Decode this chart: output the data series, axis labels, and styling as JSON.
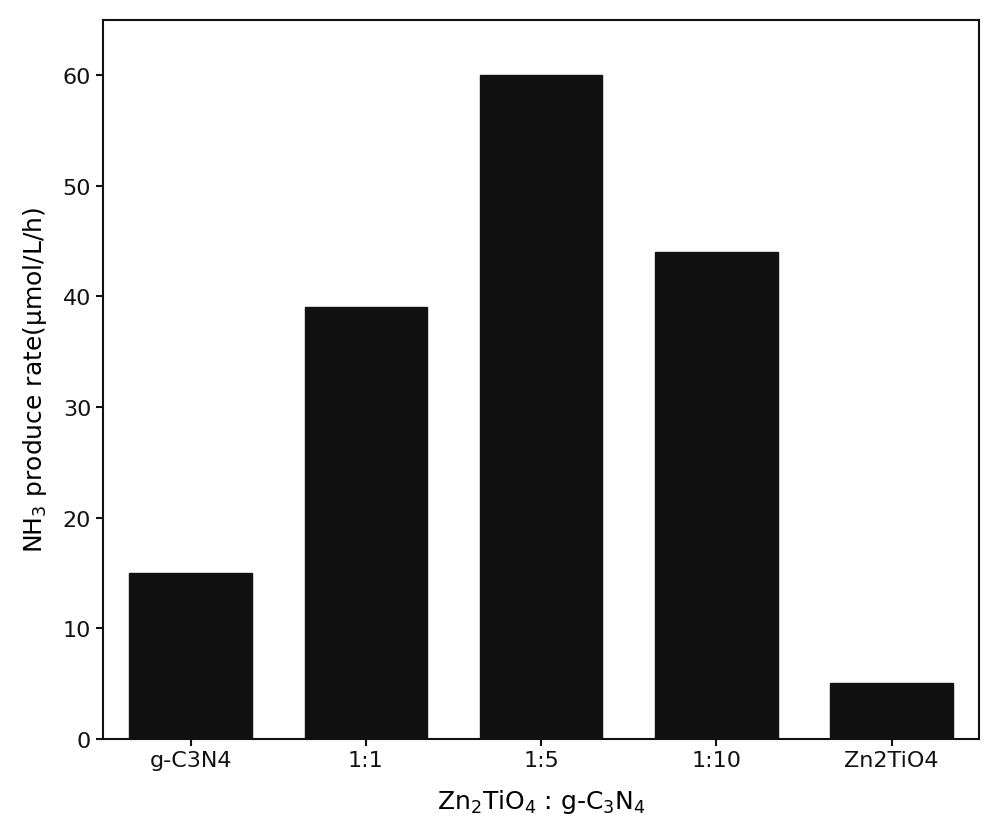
{
  "categories": [
    "g-C3N4",
    "1:1",
    "1:5",
    "1:10",
    "Zn2TiO4"
  ],
  "values": [
    15,
    39,
    60,
    44,
    5
  ],
  "bar_color": "#111111",
  "bar_width": 0.7,
  "xlabel": "Zn$_2$TiO$_4$ : g-C$_3$N$_4$",
  "ylabel": "NH$_3$ produce rate(μmol/L/h)",
  "ylim": [
    0,
    65
  ],
  "yticks": [
    0,
    10,
    20,
    30,
    40,
    50,
    60
  ],
  "xlabel_fontsize": 18,
  "ylabel_fontsize": 18,
  "tick_fontsize": 16,
  "background_color": "#ffffff",
  "spine_color": "#111111",
  "figsize": [
    10.0,
    8.37
  ],
  "dpi": 100
}
